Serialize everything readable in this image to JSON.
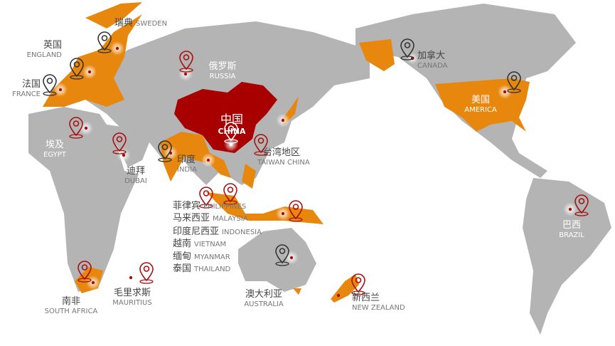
{
  "colors": {
    "land": "#b4b4b4",
    "partner": "#e8870e",
    "china": "#a80000",
    "pin_dark": "#333333",
    "pin_red": "#a51010"
  },
  "labels": {
    "sweden": {
      "cn": "瑞典",
      "en": "SWEDEN"
    },
    "england": {
      "cn": "英国",
      "en": "ENGLAND"
    },
    "france": {
      "cn": "法国",
      "en": "FRANCE"
    },
    "egypt": {
      "cn": "埃及",
      "en": "EGYPT"
    },
    "russia": {
      "cn": "俄罗斯",
      "en": "RUSSIA"
    },
    "china": {
      "cn": "中国",
      "en": "CHINA"
    },
    "taiwan": {
      "cn": "台湾地区",
      "en": "TAIWAN CHINA"
    },
    "india": {
      "cn": "印度",
      "en": "INDIA"
    },
    "dubai": {
      "cn": "迪拜",
      "en": "DUBAI"
    },
    "philippines": {
      "cn": "菲律宾",
      "en": "PHILIPPINES"
    },
    "malaysia": {
      "cn": "马来西亚",
      "en": "MALAYSIA"
    },
    "indonesia": {
      "cn": "印度尼西亚",
      "en": "INDONESIA"
    },
    "vietnam": {
      "cn": "越南",
      "en": "VIETNAM"
    },
    "myanmar": {
      "cn": "缅甸",
      "en": "MYANMAR"
    },
    "thailand": {
      "cn": "泰国",
      "en": "THAILAND"
    },
    "south_africa": {
      "cn": "南非",
      "en": "SOUTH AFRICA"
    },
    "mauritius": {
      "cn": "毛里求斯",
      "en": "MAURITIUS"
    },
    "australia": {
      "cn": "澳大利亚",
      "en": "AUSTRALIA"
    },
    "new_zealand": {
      "cn": "新西兰",
      "en": "NEW ZEALAND"
    },
    "canada": {
      "cn": "加拿大",
      "en": "CANADA"
    },
    "america": {
      "cn": "美国",
      "en": "AMERICA"
    },
    "brazil": {
      "cn": "巴西",
      "en": "BRAZIL"
    }
  }
}
